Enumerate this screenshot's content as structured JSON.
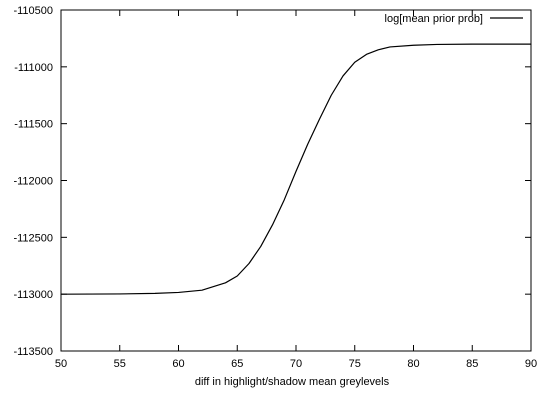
{
  "chart_data": {
    "type": "line",
    "title": "",
    "xlabel": "diff in highlight/shadow mean greylevels",
    "ylabel": "",
    "xlim": [
      50,
      90
    ],
    "ylim": [
      -113500,
      -110500
    ],
    "xticks": [
      50,
      55,
      60,
      65,
      70,
      75,
      80,
      85,
      90
    ],
    "yticks": [
      -110500,
      -111000,
      -111500,
      -112000,
      -112500,
      -113000,
      -113500
    ],
    "xtick_labels": [
      "50",
      "55",
      "60",
      "65",
      "70",
      "75",
      "80",
      "85",
      "90"
    ],
    "ytick_labels": [
      "-110500",
      "-111000",
      "-111500",
      "-112000",
      "-112500",
      "-113000",
      "-113500"
    ],
    "grid": false,
    "legend_position": "top-right",
    "series": [
      {
        "name": "log[mean prior prob]",
        "color": "#000000",
        "x": [
          50,
          55,
          58,
          60,
          62,
          64,
          65,
          66,
          67,
          68,
          69,
          70,
          71,
          72,
          73,
          74,
          75,
          76,
          77,
          78,
          80,
          82,
          85,
          88,
          90
        ],
        "y": [
          -113000,
          -112998,
          -112993,
          -112985,
          -112965,
          -112900,
          -112840,
          -112730,
          -112580,
          -112390,
          -112170,
          -111920,
          -111680,
          -111460,
          -111250,
          -111080,
          -110960,
          -110890,
          -110850,
          -110825,
          -110810,
          -110803,
          -110800,
          -110800,
          -110800
        ]
      }
    ]
  }
}
